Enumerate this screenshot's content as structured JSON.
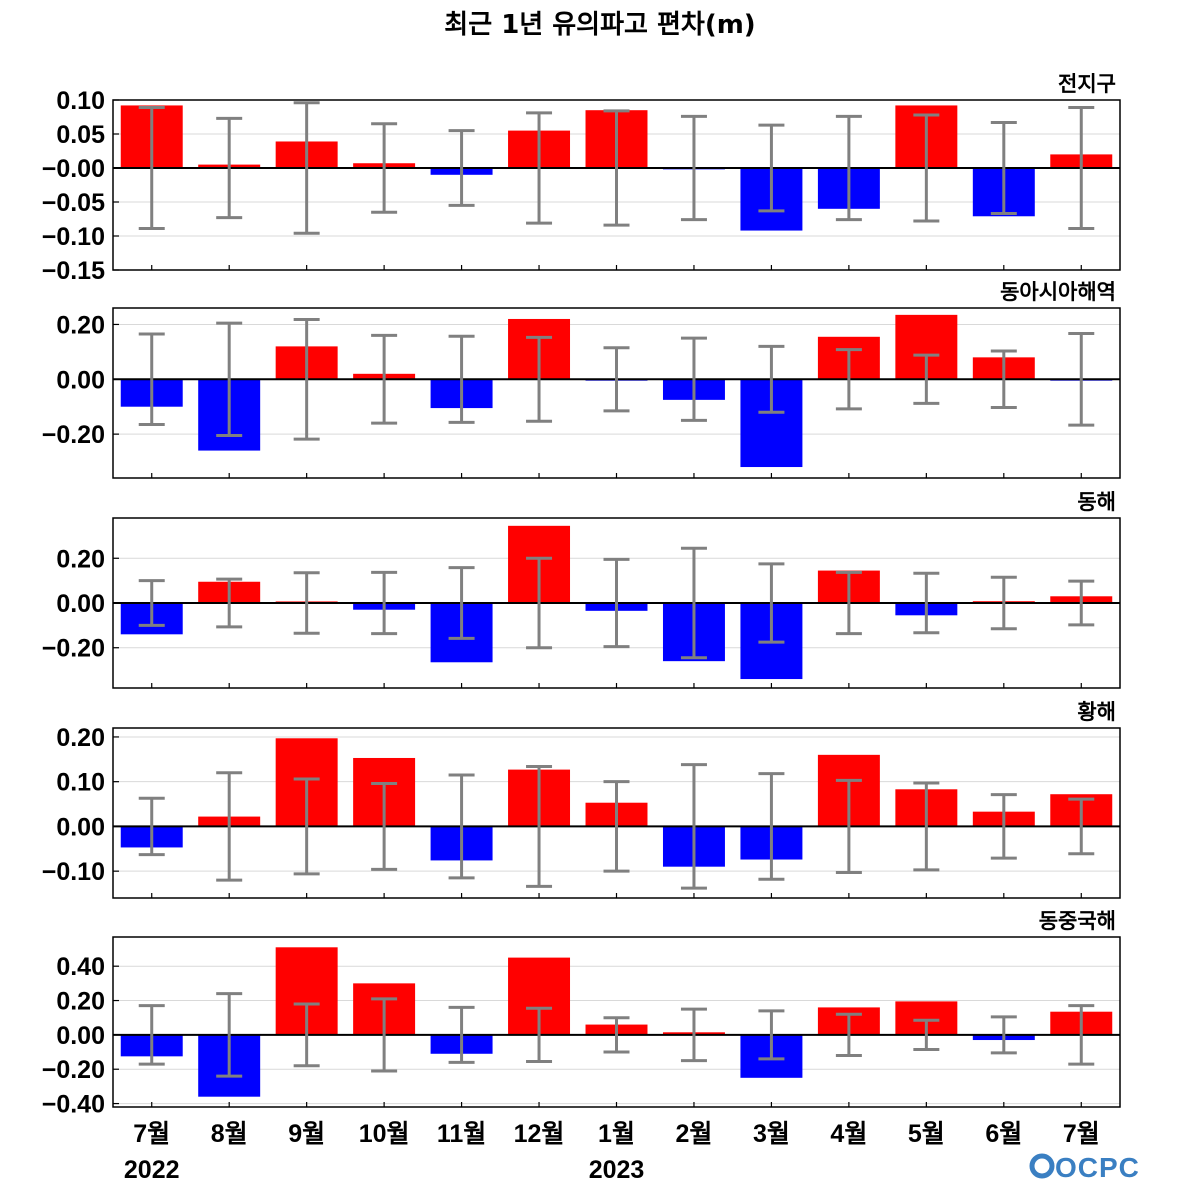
{
  "title": "최근 1년 유의파고 편차(m)",
  "months": [
    "7월",
    "8월",
    "9월",
    "10월",
    "11월",
    "12월",
    "1월",
    "2월",
    "3월",
    "4월",
    "5월",
    "6월",
    "7월"
  ],
  "years": [
    {
      "label": "2022",
      "index": 0
    },
    {
      "label": "2023",
      "index": 6
    }
  ],
  "logo": "OCPC",
  "colors": {
    "positive": "#ff0000",
    "negative": "#0000ff",
    "errorbar": "#808080",
    "grid": "#d9d9d9",
    "zero_line": "#000000"
  },
  "chart_data": [
    {
      "type": "bar",
      "region": "전지구",
      "categories": [
        "7월",
        "8월",
        "9월",
        "10월",
        "11월",
        "12월",
        "1월",
        "2월",
        "3월",
        "4월",
        "5월",
        "6월",
        "7월"
      ],
      "values": [
        0.092,
        0.005,
        0.039,
        0.007,
        -0.01,
        0.055,
        0.085,
        -0.002,
        -0.092,
        -0.06,
        0.092,
        -0.071,
        0.02
      ],
      "errors": [
        0.089,
        0.073,
        0.096,
        0.065,
        0.055,
        0.081,
        0.084,
        0.076,
        0.063,
        0.076,
        0.078,
        0.067,
        0.089
      ],
      "ylim": [
        -0.15,
        0.1
      ],
      "ticks": [
        0.1,
        0.05,
        0.0,
        -0.05,
        -0.1,
        -0.15
      ],
      "tick_labels": [
        "0.10",
        "0.05",
        "−0.00",
        "−0.05",
        "−0.10",
        "−0.15"
      ],
      "grid": true
    },
    {
      "type": "bar",
      "region": "동아시아해역",
      "categories": [
        "7월",
        "8월",
        "9월",
        "10월",
        "11월",
        "12월",
        "1월",
        "2월",
        "3월",
        "4월",
        "5월",
        "6월",
        "7월"
      ],
      "values": [
        -0.1,
        -0.26,
        0.12,
        0.02,
        -0.105,
        0.22,
        -0.005,
        -0.075,
        -0.32,
        0.155,
        0.235,
        0.08,
        -0.005
      ],
      "errors": [
        0.165,
        0.205,
        0.218,
        0.16,
        0.157,
        0.153,
        0.115,
        0.15,
        0.12,
        0.108,
        0.088,
        0.103,
        0.167
      ],
      "ylim": [
        -0.36,
        0.26
      ],
      "ticks": [
        0.2,
        0.0,
        -0.2
      ],
      "tick_labels": [
        "0.20",
        "0.00",
        "−0.20"
      ],
      "grid": true
    },
    {
      "type": "bar",
      "region": "동해",
      "categories": [
        "7월",
        "8월",
        "9월",
        "10월",
        "11월",
        "12월",
        "1월",
        "2월",
        "3월",
        "4월",
        "5월",
        "6월",
        "7월"
      ],
      "values": [
        -0.14,
        0.095,
        0.007,
        -0.03,
        -0.265,
        0.345,
        -0.035,
        -0.26,
        -0.34,
        0.145,
        -0.055,
        0.008,
        0.03
      ],
      "errors": [
        0.1,
        0.107,
        0.135,
        0.137,
        0.158,
        0.2,
        0.195,
        0.245,
        0.175,
        0.137,
        0.133,
        0.115,
        0.098
      ],
      "ylim": [
        -0.38,
        0.38
      ],
      "ticks": [
        0.2,
        0.0,
        -0.2
      ],
      "tick_labels": [
        "0.20",
        "0.00",
        "−0.20"
      ],
      "grid": true
    },
    {
      "type": "bar",
      "region": "황해",
      "categories": [
        "7월",
        "8월",
        "9월",
        "10월",
        "11월",
        "12월",
        "1월",
        "2월",
        "3월",
        "4월",
        "5월",
        "6월",
        "7월"
      ],
      "values": [
        -0.047,
        0.022,
        0.197,
        0.153,
        -0.076,
        0.127,
        0.053,
        -0.09,
        -0.074,
        0.16,
        0.083,
        0.033,
        0.072
      ],
      "errors": [
        0.063,
        0.12,
        0.106,
        0.096,
        0.115,
        0.134,
        0.1,
        0.138,
        0.118,
        0.103,
        0.097,
        0.071,
        0.061
      ],
      "ylim": [
        -0.16,
        0.22
      ],
      "ticks": [
        0.2,
        0.1,
        0.0,
        -0.1
      ],
      "tick_labels": [
        "0.20",
        "0.10",
        "0.00",
        "−0.10"
      ],
      "grid": true
    },
    {
      "type": "bar",
      "region": "동중국해",
      "categories": [
        "7월",
        "8월",
        "9월",
        "10월",
        "11월",
        "12월",
        "1월",
        "2월",
        "3월",
        "4월",
        "5월",
        "6월",
        "7월"
      ],
      "values": [
        -0.125,
        -0.36,
        0.51,
        0.3,
        -0.11,
        0.45,
        0.06,
        0.015,
        -0.25,
        0.16,
        0.195,
        -0.03,
        0.135
      ],
      "errors": [
        0.17,
        0.24,
        0.18,
        0.21,
        0.16,
        0.155,
        0.1,
        0.15,
        0.14,
        0.12,
        0.085,
        0.105,
        0.17
      ],
      "ylim": [
        -0.42,
        0.57
      ],
      "ticks": [
        0.4,
        0.2,
        0.0,
        -0.2,
        -0.4
      ],
      "tick_labels": [
        "0.40",
        "0.20",
        "0.00",
        "−0.20",
        "−0.40"
      ],
      "grid": true
    }
  ]
}
